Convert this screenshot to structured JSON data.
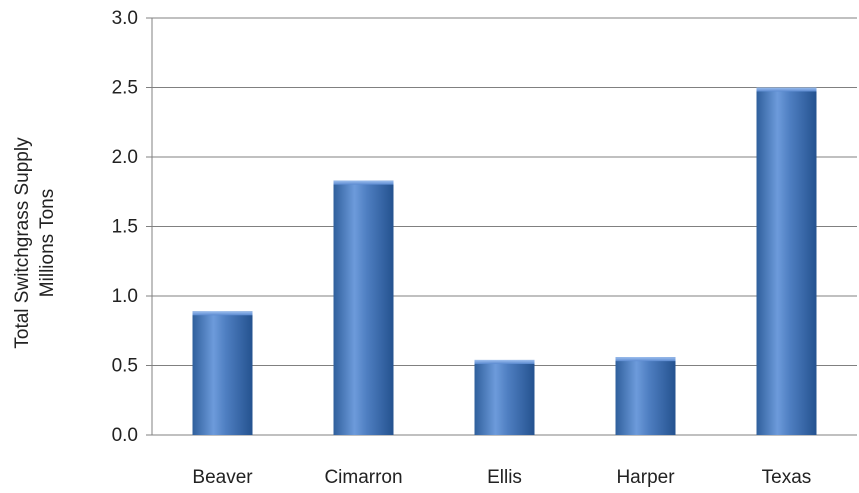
{
  "chart_data": {
    "type": "bar",
    "title": "",
    "ylabel_line1": "Total Switchgrass Supply",
    "ylabel_line2": "Millions Tons",
    "categories": [
      "Beaver",
      "Cimarron",
      "Ellis",
      "Harper",
      "Texas"
    ],
    "values": [
      0.89,
      1.83,
      0.54,
      0.56,
      2.5
    ],
    "ylim": [
      0,
      3.0
    ],
    "yticks": [
      "0.0",
      "0.5",
      "1.0",
      "1.5",
      "2.0",
      "2.5",
      "3.0"
    ],
    "grid": true,
    "legend": "none",
    "colors": {
      "bar_light": "#8AB0E6",
      "bar_main": "#4F81BD",
      "bar_dark": "#2C5A96",
      "grid": "#808080"
    }
  }
}
